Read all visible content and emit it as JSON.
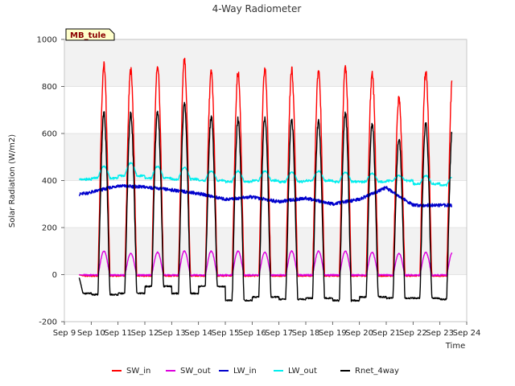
{
  "chart_data": {
    "type": "line",
    "title": "4-Way Radiometer",
    "xlabel": "Time",
    "ylabel": "Solar Radiation (W/m2)",
    "badge": "MB_tule",
    "ylim": [
      -200,
      1000
    ],
    "yticks": [
      -200,
      0,
      200,
      400,
      600,
      800,
      1000
    ],
    "xlim": [
      9,
      24
    ],
    "xticks": [
      9,
      10,
      11,
      12,
      13,
      14,
      15,
      16,
      17,
      18,
      19,
      20,
      21,
      22,
      23,
      24
    ],
    "xtick_labels": [
      "Sep 9",
      "Sep 10",
      "Sep 11",
      "Sep 12",
      "Sep 13",
      "Sep 14",
      "Sep 15",
      "Sep 16",
      "Sep 17",
      "Sep 18",
      "Sep 19",
      "Sep 20",
      "Sep 21",
      "Sep 22",
      "Sep 23",
      "Sep 24"
    ],
    "x_days": [
      9,
      10,
      11,
      12,
      13,
      14,
      15,
      16,
      17,
      18,
      19,
      20,
      21,
      22,
      23
    ],
    "data_start": 9.55,
    "data_end": 23.45,
    "series": [
      {
        "name": "SW_in",
        "color": "#ff0000",
        "kind": "sw",
        "night": -5,
        "daily_peak": [
          0,
          890,
          870,
          890,
          910,
          860,
          860,
          875,
          870,
          870,
          880,
          855,
          750,
          865,
          845
        ]
      },
      {
        "name": "SW_out",
        "color": "#dd00dd",
        "kind": "sw",
        "night": -2,
        "daily_peak": [
          0,
          100,
          90,
          95,
          100,
          100,
          100,
          95,
          100,
          100,
          100,
          95,
          90,
          95,
          95
        ]
      },
      {
        "name": "LW_in",
        "color": "#0000cc",
        "kind": "smooth",
        "daily_value": [
          330,
          350,
          378,
          372,
          360,
          345,
          320,
          330,
          310,
          325,
          300,
          320,
          370,
          295,
          295
        ]
      },
      {
        "name": "LW_out",
        "color": "#00eeee",
        "kind": "lwout",
        "daily_base": [
          405,
          410,
          420,
          410,
          405,
          400,
          395,
          400,
          395,
          400,
          395,
          395,
          400,
          385,
          380
        ],
        "daily_peak": [
          0,
          460,
          475,
          460,
          455,
          440,
          440,
          440,
          435,
          440,
          435,
          430,
          420,
          420,
          415
        ]
      },
      {
        "name": "Rnet_4way",
        "color": "#000000",
        "kind": "sw",
        "daily_night": [
          -80,
          -85,
          -80,
          -50,
          -80,
          -50,
          -110,
          -95,
          -105,
          -100,
          -110,
          -95,
          -100,
          -100,
          -105
        ],
        "daily_peak": [
          0,
          685,
          680,
          690,
          725,
          670,
          660,
          670,
          655,
          650,
          685,
          640,
          580,
          640,
          630
        ]
      }
    ],
    "legend": [
      "SW_in",
      "SW_out",
      "LW_in",
      "LW_out",
      "Rnet_4way"
    ],
    "legend_position": "bottom",
    "grid": true
  }
}
